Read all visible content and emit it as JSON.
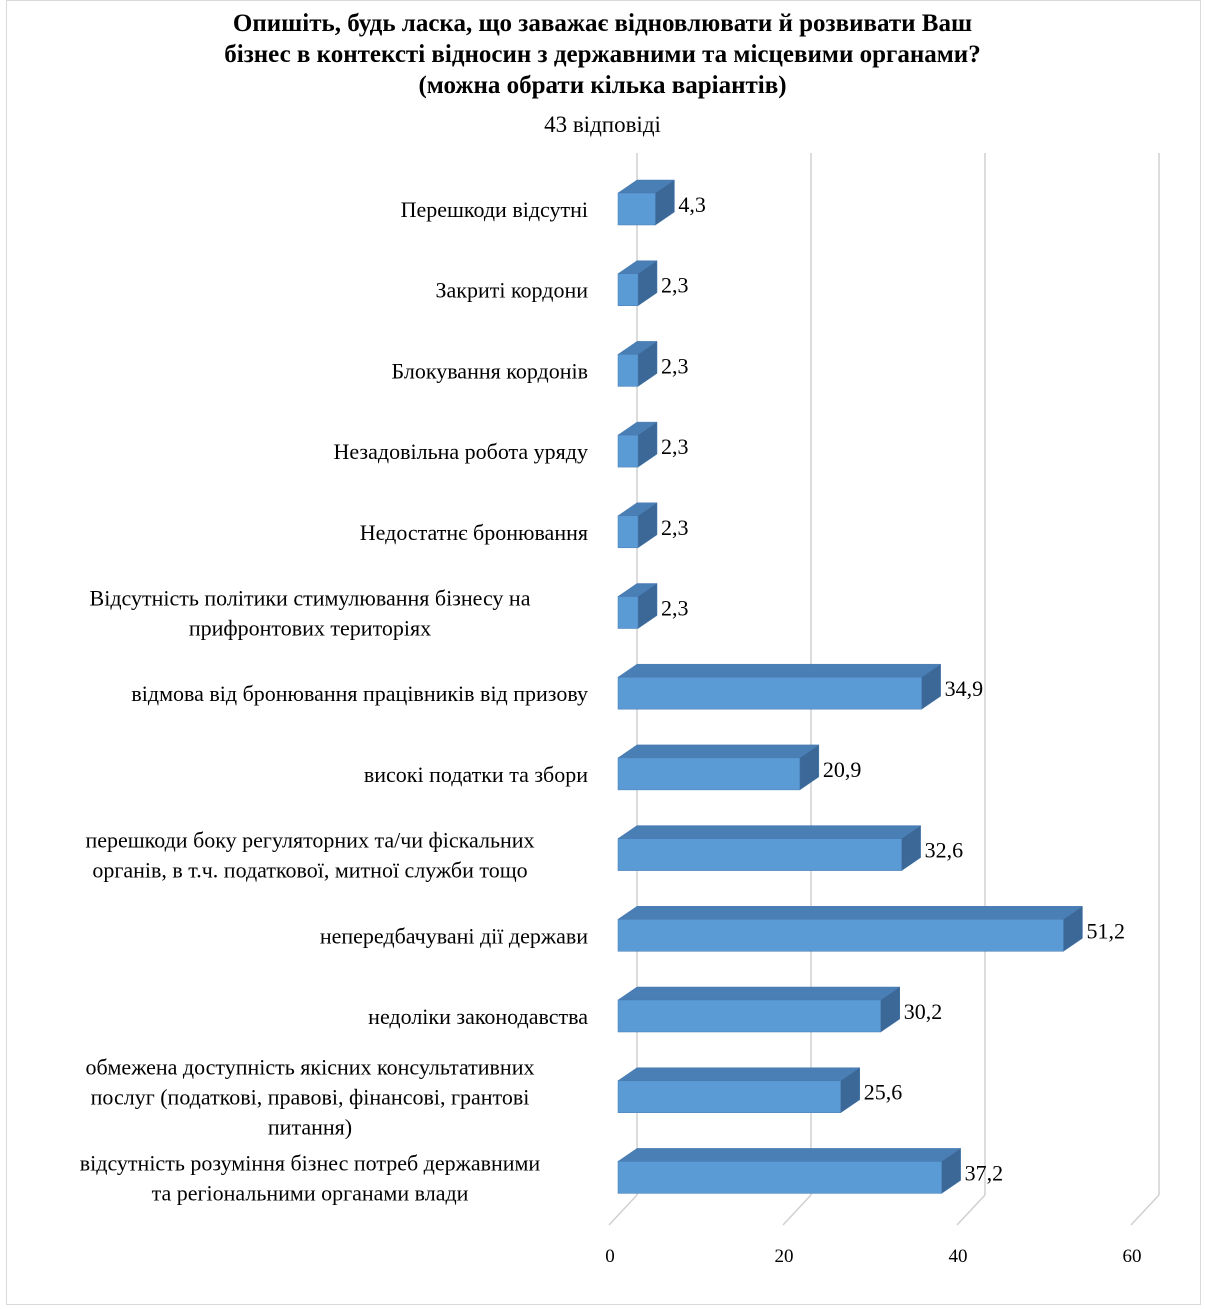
{
  "chart_data": {
    "type": "bar",
    "orientation": "horizontal",
    "style": "3d",
    "title_lines": [
      "Опишіть, будь ласка, що заважає відновлювати й розвивати Ваш",
      "бізнес в контексті відносин з державними та місцевими органами?",
      "(можна обрати кілька варіантів)"
    ],
    "subtitle": "43 відповіді",
    "categories": [
      [
        "Перешкоди відсутні"
      ],
      [
        "Закриті кордони"
      ],
      [
        "Блокування кордонів"
      ],
      [
        "Незадовільна робота уряду"
      ],
      [
        "Недостатнє бронювання"
      ],
      [
        "Відсутність політики стимулювання бізнесу на",
        "прифронтових територіях"
      ],
      [
        "відмова від бронювання працівників від призову"
      ],
      [
        "високі податки та збори"
      ],
      [
        "перешкоди боку регуляторних та/чи фіскальних",
        "органів, в т.ч. податкової, митної служби тощо"
      ],
      [
        "непередбачувані дії держави"
      ],
      [
        "недоліки законодавства"
      ],
      [
        "обмежена доступність якісних консультативних",
        "послуг (податкові, правові, фінансові, грантові",
        "питання)"
      ],
      [
        "відсутність розуміння бізнес потреб державними",
        "та регіональними органами влади"
      ]
    ],
    "values": [
      4.3,
      2.3,
      2.3,
      2.3,
      2.3,
      2.3,
      34.9,
      20.9,
      32.6,
      51.2,
      30.2,
      25.6,
      37.2
    ],
    "value_labels": [
      "4,3",
      "2,3",
      "2,3",
      "2,3",
      "2,3",
      "2,3",
      "34,9",
      "20,9",
      "32,6",
      "51,2",
      "30,2",
      "25,6",
      "37,2"
    ],
    "xlim": [
      0,
      60
    ],
    "x_ticks": [
      0,
      20,
      40,
      60
    ],
    "x_tick_labels": [
      "0",
      "20",
      "40",
      "60"
    ],
    "grid": true,
    "legend": "none",
    "colors": {
      "bar_front": "#5b9bd5",
      "bar_top": "#4a7fb5",
      "bar_side": "#3b6896",
      "bar_edge": "#4779b0",
      "grid": "#d0d0d0"
    }
  }
}
